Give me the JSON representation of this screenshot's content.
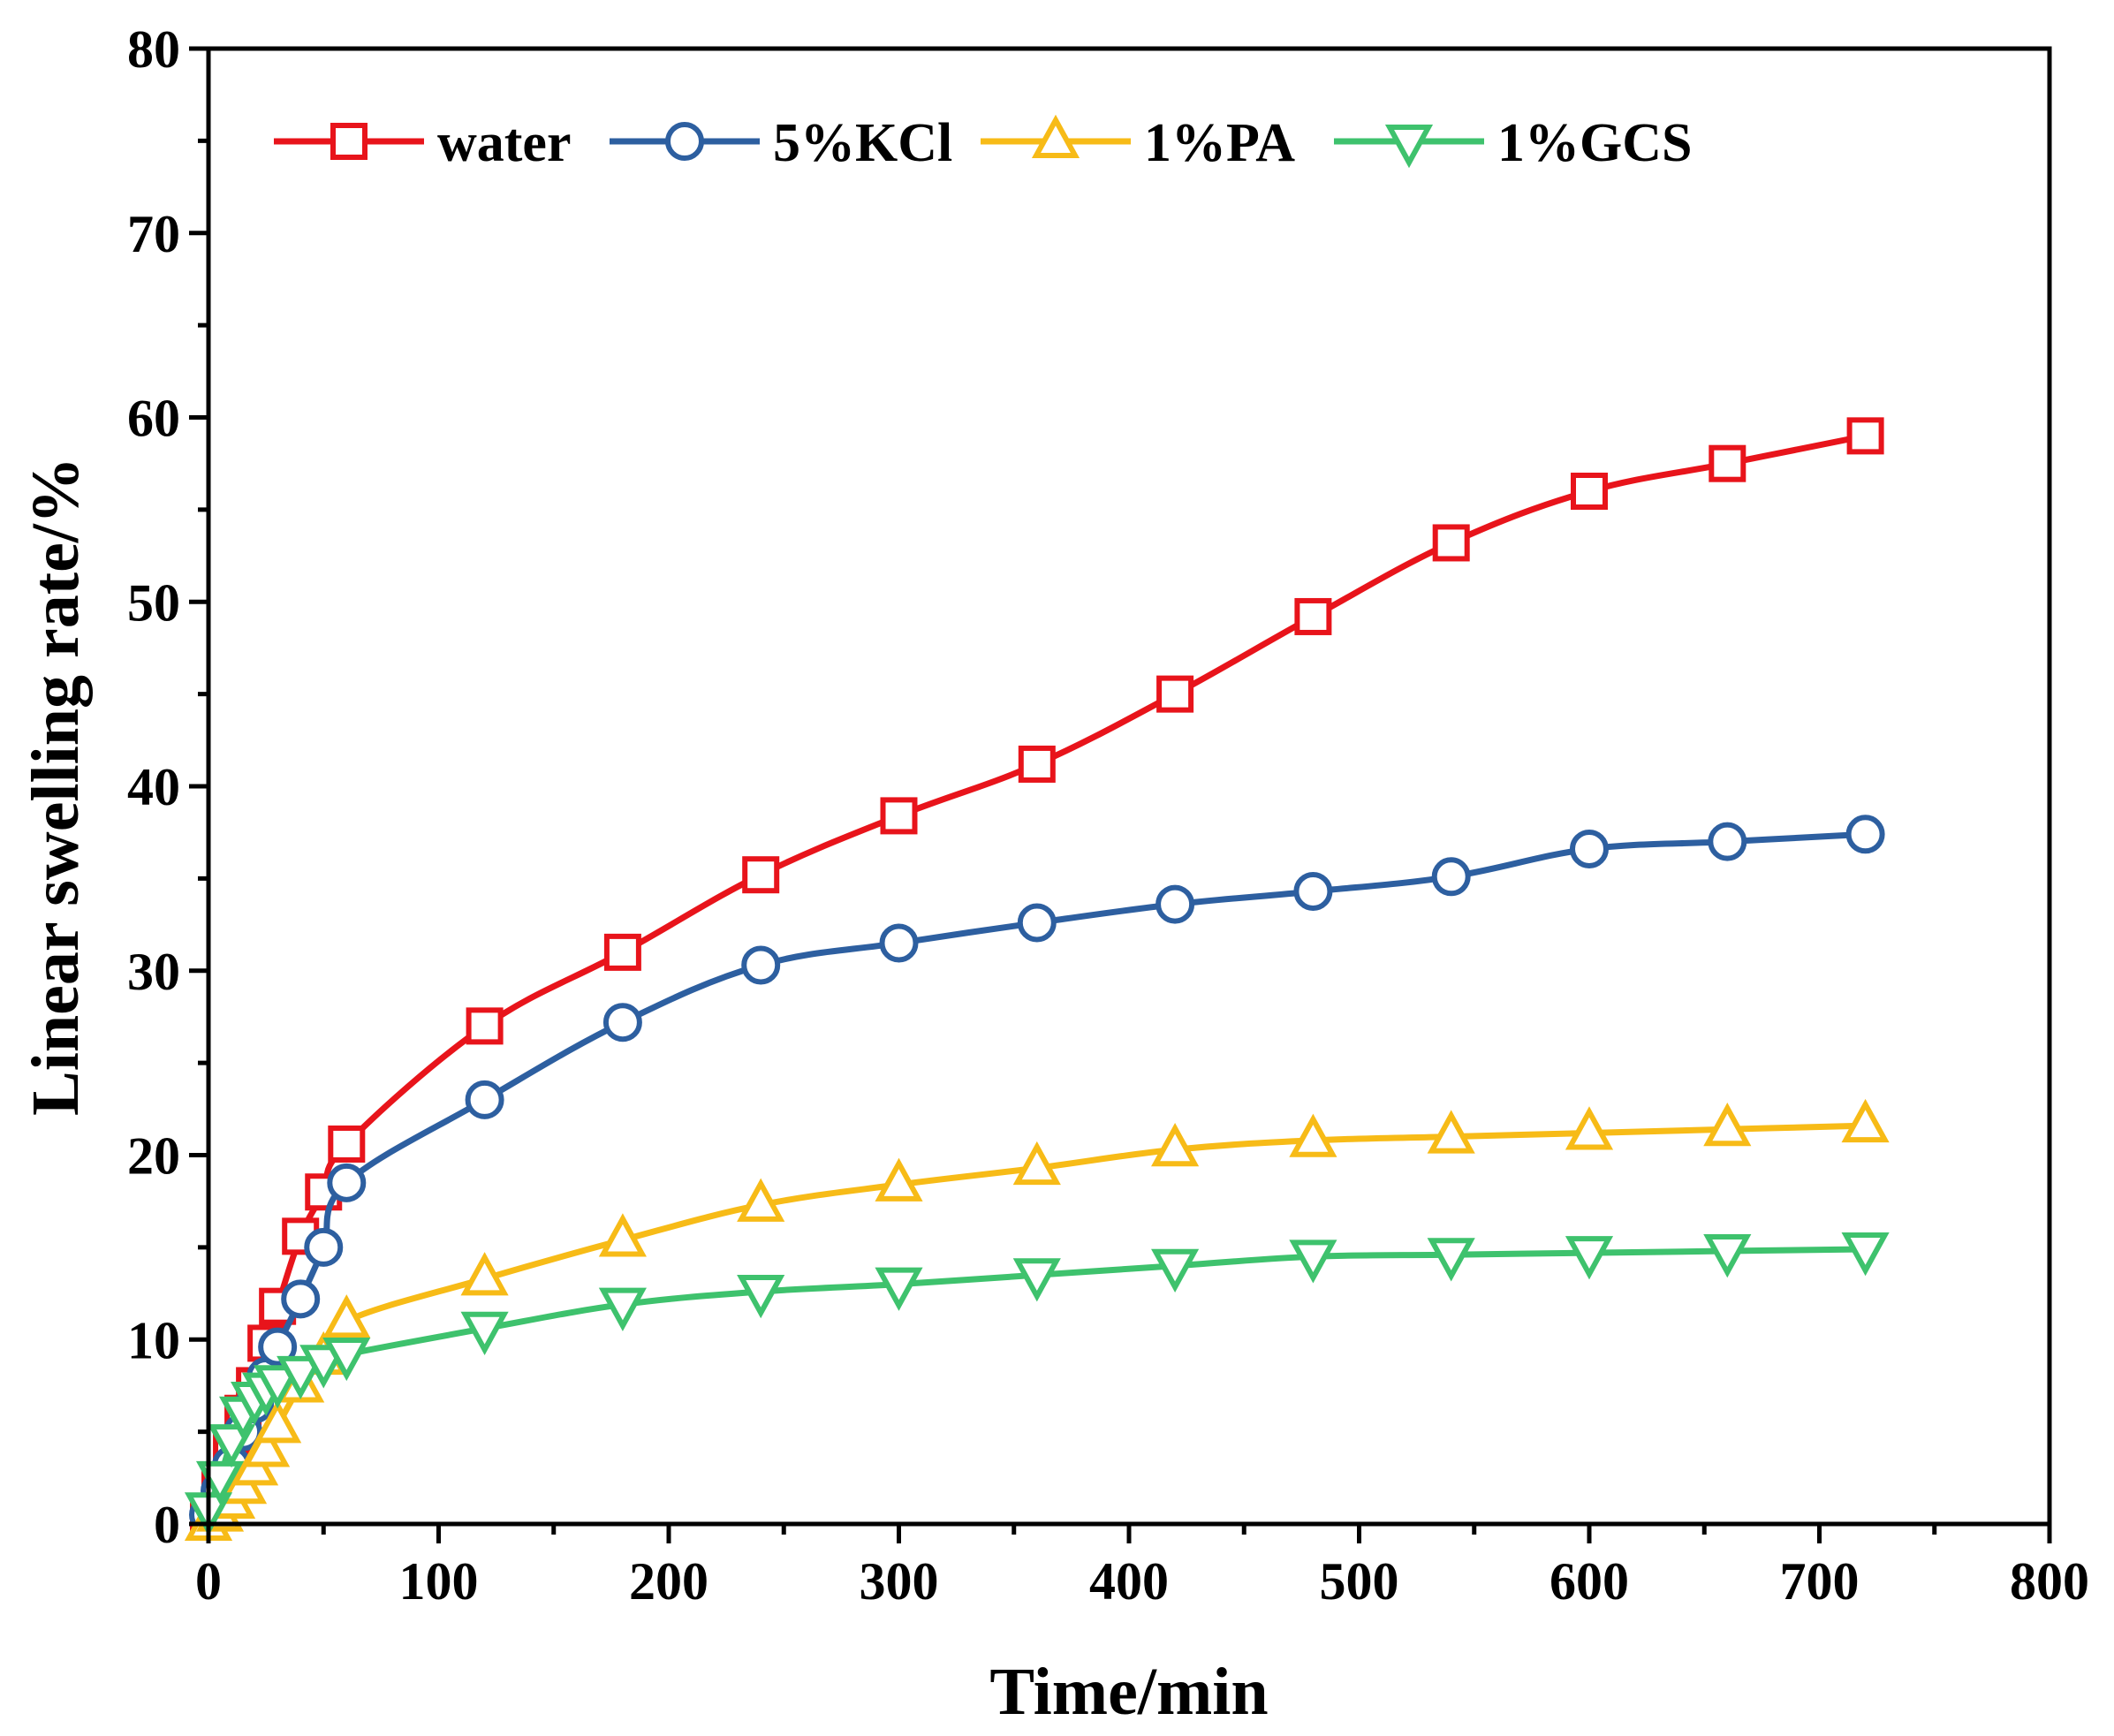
{
  "chart_data": {
    "type": "line",
    "xlabel": "Time/min",
    "ylabel": "Linear swelling rate/%",
    "xlim": [
      0,
      800
    ],
    "ylim": [
      0,
      80
    ],
    "xticks": [
      0,
      100,
      200,
      300,
      400,
      500,
      600,
      700,
      800
    ],
    "yticks": [
      0,
      10,
      20,
      30,
      40,
      50,
      60,
      70,
      80
    ],
    "xtick_labels": [
      "0",
      "100",
      "200",
      "300",
      "400",
      "500",
      "600",
      "700",
      "800"
    ],
    "ytick_labels": [
      "0",
      "10",
      "20",
      "30",
      "40",
      "50",
      "60",
      "70",
      "80"
    ],
    "grid": false,
    "legend_position": "top-left",
    "x": [
      0,
      5,
      10,
      15,
      20,
      25,
      30,
      40,
      50,
      60,
      120,
      180,
      240,
      300,
      360,
      420,
      480,
      540,
      600,
      660,
      720
    ],
    "series": [
      {
        "name": "water",
        "marker": "square",
        "color": "#e8141b",
        "values": [
          0.5,
          2.2,
          4.0,
          6.0,
          7.5,
          9.8,
          11.8,
          15.6,
          18.0,
          20.6,
          27.0,
          31.0,
          35.2,
          38.4,
          41.2,
          45.0,
          49.2,
          53.2,
          56.0,
          57.5,
          59.0
        ]
      },
      {
        "name": "5%KCl",
        "marker": "circle",
        "color": "#2d5fa0",
        "values": [
          0.5,
          1.8,
          3.2,
          5.0,
          6.5,
          8.0,
          9.6,
          12.2,
          15.0,
          18.5,
          23.0,
          27.2,
          30.3,
          31.5,
          32.6,
          33.6,
          34.3,
          35.1,
          36.6,
          37.0,
          37.4
        ]
      },
      {
        "name": "1%PA",
        "marker": "triangle-up",
        "color": "#f7bb17",
        "values": [
          0.0,
          0.5,
          1.2,
          2.0,
          3.0,
          4.0,
          5.3,
          7.5,
          9.0,
          11.0,
          13.3,
          15.4,
          17.3,
          18.4,
          19.3,
          20.3,
          20.8,
          21.0,
          21.2,
          21.4,
          21.6
        ]
      },
      {
        "name": "1%GCS",
        "marker": "triangle-down",
        "color": "#3ec26d",
        "values": [
          0.8,
          2.5,
          4.5,
          6.0,
          6.8,
          7.3,
          7.7,
          8.2,
          8.8,
          9.2,
          10.6,
          11.9,
          12.6,
          13.0,
          13.5,
          14.0,
          14.5,
          14.6,
          14.7,
          14.8,
          14.9
        ]
      }
    ]
  }
}
